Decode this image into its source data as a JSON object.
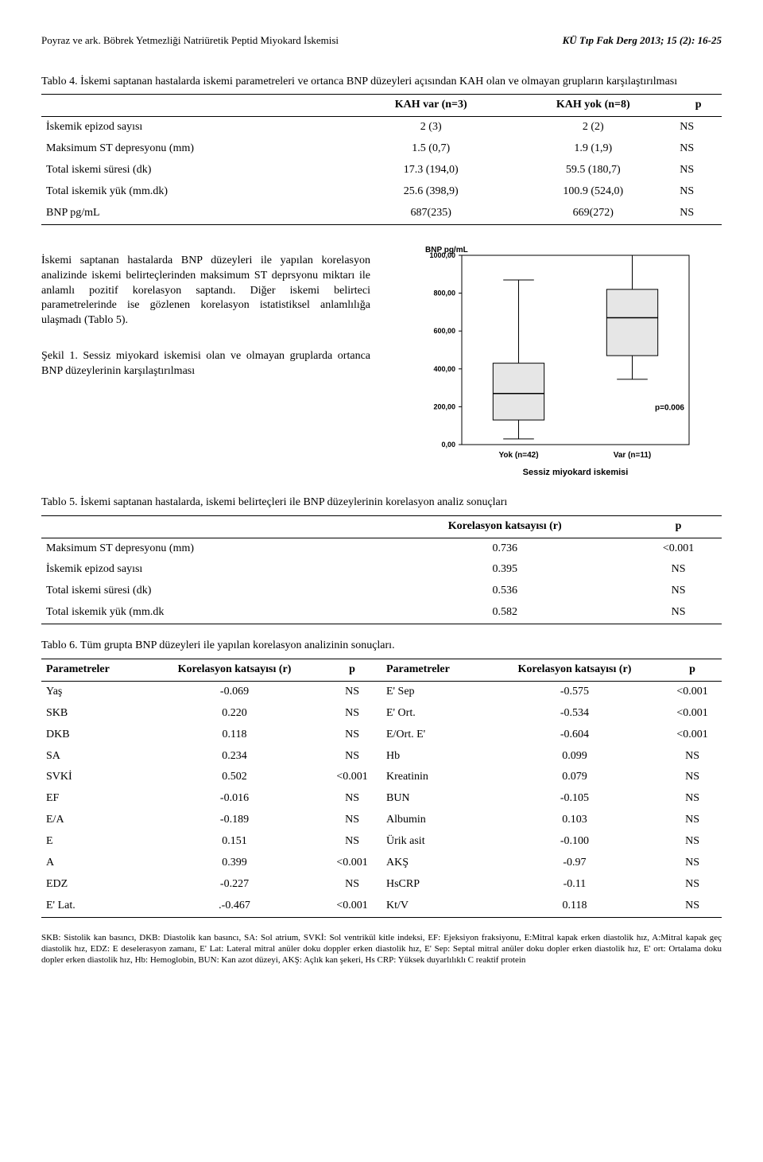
{
  "header": {
    "left": "Poyraz ve ark. Böbrek Yetmezliği Natriüretik Peptid Miyokard İskemisi",
    "right": "KÜ Tıp Fak Derg 2013; 15 (2): 16-25"
  },
  "table4": {
    "caption": "Tablo 4. İskemi saptanan hastalarda iskemi parametreleri ve ortanca BNP düzeyleri açısından KAH olan ve olmayan grupların karşılaştırılması",
    "head": {
      "c0": "",
      "c1": "KAH var (n=3)",
      "c2": "KAH yok (n=8)",
      "c3": "p"
    },
    "rows": [
      {
        "c0": "İskemik epizod sayısı",
        "c1": "2 (3)",
        "c2": "2 (2)",
        "c3": "NS"
      },
      {
        "c0": "Maksimum ST depresyonu (mm)",
        "c1": "1.5 (0,7)",
        "c2": "1.9 (1,9)",
        "c3": "NS"
      },
      {
        "c0": "Total iskemi süresi (dk)",
        "c1": "17.3 (194,0)",
        "c2": "59.5 (180,7)",
        "c3": "NS"
      },
      {
        "c0": "Total iskemik yük (mm.dk)",
        "c1": "25.6 (398,9)",
        "c2": "100.9 (524,0)",
        "c3": "NS"
      },
      {
        "c0": "BNP pg/mL",
        "c1": "687(235)",
        "c2": "669(272)",
        "c3": "NS"
      }
    ]
  },
  "para1": "İskemi saptanan hastalarda BNP düzeyleri ile yapılan korelasyon analizinde iskemi belirteçlerinden maksimum ST deprsyonu miktarı ile anlamlı pozitif korelasyon saptandı. Diğer iskemi belirteci parametrelerinde ise gözlenen korelasyon istatistiksel anlamlılığa ulaşmadı (Tablo 5).",
  "fig1_caption": "Şekil 1. Sessiz miyokard iskemisi olan ve olmayan gruplarda ortanca BNP düzeylerinin karşılaştırılması",
  "boxplot": {
    "type": "boxplot",
    "ylabel": "BNP pg/mL",
    "ylim": [
      0,
      1000
    ],
    "ytick_step": 200,
    "yticks": [
      "0,00",
      "200,00",
      "400,00",
      "600,00",
      "800,00",
      "1000,00"
    ],
    "xlabel": "Sessiz miyokard iskemisi",
    "categories": [
      "Yok (n=42)",
      "Var (n=11)"
    ],
    "p_text": "p=0.006",
    "background_color": "#ffffff",
    "axis_color": "#000000",
    "box_fill": "#e6e6e6",
    "box_border": "#000000",
    "median_color": "#000000",
    "box_width": 0.45,
    "text_color": "#000000",
    "label_fontsize": 10,
    "tick_fontsize": 9,
    "boxes": [
      {
        "whisker_low": 30,
        "q1": 130,
        "median": 270,
        "q3": 430,
        "whisker_high": 870
      },
      {
        "whisker_low": 345,
        "q1": 470,
        "median": 670,
        "q3": 820,
        "whisker_high": 1000
      }
    ]
  },
  "table5": {
    "caption": "Tablo 5. İskemi saptanan hastalarda, iskemi belirteçleri ile BNP düzeylerinin korelasyon analiz sonuçları",
    "head": {
      "c0": "",
      "c1": "Korelasyon katsayısı (r)",
      "c2": "p"
    },
    "rows": [
      {
        "c0": "Maksimum ST depresyonu (mm)",
        "c1": "0.736",
        "c2": "<0.001"
      },
      {
        "c0": "İskemik epizod sayısı",
        "c1": "0.395",
        "c2": "NS"
      },
      {
        "c0": "Total iskemi süresi (dk)",
        "c1": "0.536",
        "c2": "NS"
      },
      {
        "c0": "Total iskemik yük (mm.dk",
        "c1": "0.582",
        "c2": "NS"
      }
    ]
  },
  "table6": {
    "caption": "Tablo 6. Tüm grupta BNP düzeyleri ile yapılan korelasyon analizinin sonuçları.",
    "head": {
      "c0": "Parametreler",
      "c1": "Korelasyon katsayısı (r)",
      "c2": "p",
      "c3": "Parametreler",
      "c4": "Korelasyon katsayısı (r)",
      "c5": "p"
    },
    "rows": [
      {
        "c0": "Yaş",
        "c1": "-0.069",
        "c2": "NS",
        "c3": "E' Sep",
        "c4": "-0.575",
        "c5": "<0.001"
      },
      {
        "c0": "SKB",
        "c1": "0.220",
        "c2": "NS",
        "c3": "E' Ort.",
        "c4": "-0.534",
        "c5": "<0.001"
      },
      {
        "c0": "DKB",
        "c1": "0.118",
        "c2": "NS",
        "c3": "E/Ort. E'",
        "c4": "-0.604",
        "c5": "<0.001"
      },
      {
        "c0": "SA",
        "c1": "0.234",
        "c2": "NS",
        "c3": "Hb",
        "c4": "0.099",
        "c5": "NS"
      },
      {
        "c0": "SVKİ",
        "c1": "0.502",
        "c2": "<0.001",
        "c3": "Kreatinin",
        "c4": "0.079",
        "c5": "NS"
      },
      {
        "c0": "EF",
        "c1": "-0.016",
        "c2": "NS",
        "c3": "BUN",
        "c4": "-0.105",
        "c5": "NS"
      },
      {
        "c0": "E/A",
        "c1": "-0.189",
        "c2": "NS",
        "c3": "Albumin",
        "c4": "0.103",
        "c5": "NS"
      },
      {
        "c0": "E",
        "c1": "0.151",
        "c2": "NS",
        "c3": "Ürik asit",
        "c4": "-0.100",
        "c5": "NS"
      },
      {
        "c0": "A",
        "c1": "0.399",
        "c2": "<0.001",
        "c3": "AKŞ",
        "c4": "-0.97",
        "c5": "NS"
      },
      {
        "c0": "EDZ",
        "c1": "-0.227",
        "c2": "NS",
        "c3": "HsCRP",
        "c4": "-0.11",
        "c5": "NS"
      },
      {
        "c0": "E' Lat.",
        "c1": ".-0.467",
        "c2": "<0.001",
        "c3": "Kt/V",
        "c4": "0.118",
        "c5": "NS"
      }
    ]
  },
  "footnote": "SKB: Sistolik kan basıncı, DKB: Diastolik kan basıncı, SA: Sol atrium, SVKİ: Sol ventrikül kitle indeksi, EF: Ejeksiyon fraksiyonu, E:Mitral kapak erken diastolik hız, A:Mitral kapak geç diastolik hız, EDZ: E deselerasyon zamanı, E' Lat: Lateral mitral anüler doku doppler erken diastolik hız, E' Sep: Septal mitral anüler doku dopler erken diastolik hız, E' ort: Ortalama doku dopler erken diastolik hız, Hb: Hemoglobin, BUN: Kan azot düzeyi, AKŞ: Açlık kan şekeri, Hs CRP: Yüksek duyarlılıklı C reaktif protein"
}
